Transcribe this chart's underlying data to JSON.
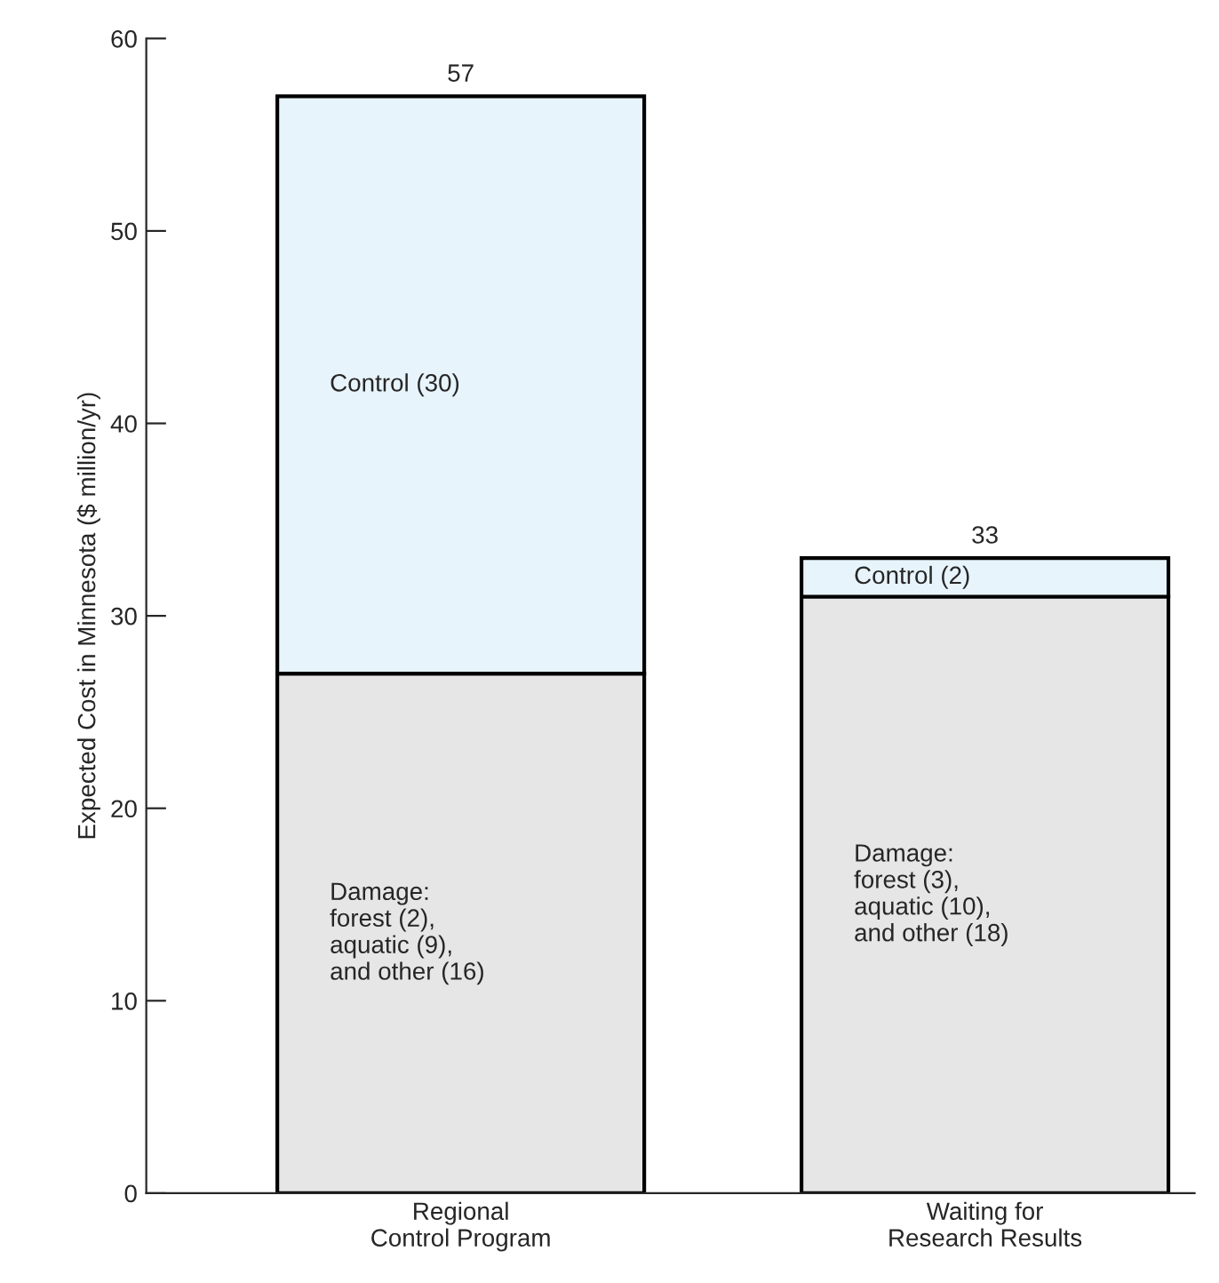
{
  "chart_data": {
    "type": "bar",
    "stacked": true,
    "ylabel": "Expected Cost in Minnesota ($ million/yr)",
    "categories": [
      "Regional\nControl Program",
      "Waiting for\nResearch Results"
    ],
    "series": [
      {
        "color": "#e6e6e6",
        "values": [
          27,
          31
        ]
      },
      {
        "color": "#e8f4fc",
        "values": [
          30,
          2
        ]
      }
    ],
    "ylim": [
      0,
      60
    ],
    "yticks": [
      0,
      10,
      20,
      30,
      40,
      50,
      60
    ],
    "grid": false,
    "legend": false,
    "totals": [
      "57",
      "33"
    ],
    "annotations": [
      "Control (30)",
      "Control (2)",
      "Damage:\nforest (2),\naquatic (9),\nand other (16)",
      "Damage:\nforest (3),\naquatic (10),\nand other (18)"
    ]
  }
}
